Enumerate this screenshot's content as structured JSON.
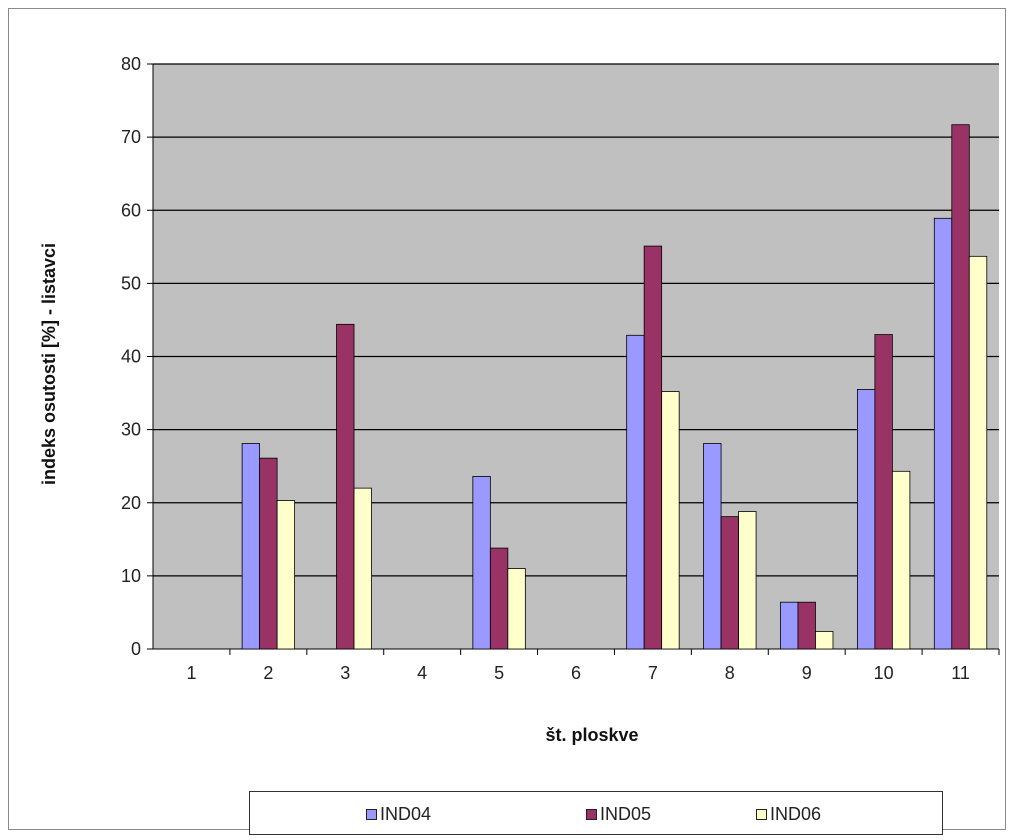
{
  "chart_data": {
    "type": "bar",
    "xlabel": "št. ploskve",
    "ylabel": "indeks osutosti [%] - listavci",
    "categories": [
      "1",
      "2",
      "3",
      "4",
      "5",
      "6",
      "7",
      "8",
      "9",
      "10",
      "11"
    ],
    "ylim": [
      0,
      80
    ],
    "yticks": [
      "0",
      "10",
      "20",
      "30",
      "40",
      "50",
      "60",
      "70",
      "80"
    ],
    "grid": true,
    "legend_position": "bottom",
    "series": [
      {
        "name": "IND04",
        "color": "#9999ff",
        "values": [
          0,
          28.1,
          0,
          0,
          23.6,
          0,
          42.9,
          28.1,
          6.4,
          35.5,
          58.9
        ]
      },
      {
        "name": "IND05",
        "color": "#993366",
        "values": [
          0,
          26.1,
          44.4,
          0,
          13.8,
          0,
          55.1,
          18.1,
          6.4,
          43.0,
          71.7
        ]
      },
      {
        "name": "IND06",
        "color": "#ffffcc",
        "values": [
          0,
          20.3,
          22.0,
          0,
          11.0,
          0,
          35.2,
          18.8,
          2.4,
          24.3,
          53.7
        ]
      }
    ],
    "plot_background": "#c0c0c0"
  }
}
